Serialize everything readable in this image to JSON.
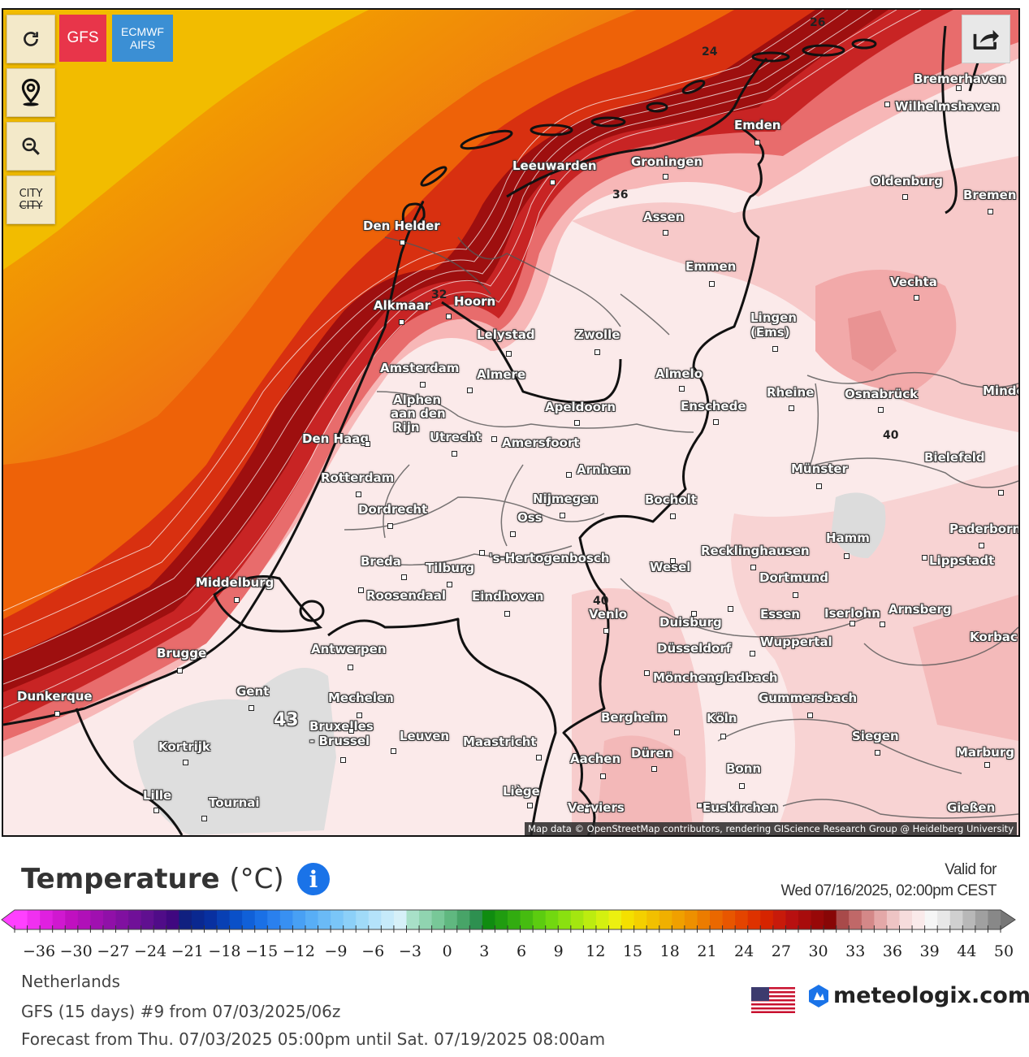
{
  "controls": {
    "refresh_icon": "refresh-icon",
    "gfs_label": "GFS",
    "ecmwf_label_1": "ECMWF",
    "ecmwf_label_2": "AIFS",
    "location_icon": "map-pin-icon",
    "zoom_icon": "zoom-out-icon",
    "city_toggle_label_1": "CITY",
    "city_toggle_label_2": "CITY",
    "share_icon": "share-icon",
    "colors": {
      "gfs": "#e8354a",
      "ecmwf": "#3b8fd4"
    }
  },
  "map": {
    "cities": [
      {
        "name": "Bremerhaven"
      },
      {
        "name": "Wilhelmshaven"
      },
      {
        "name": "Emden"
      },
      {
        "name": "Groningen"
      },
      {
        "name": "Leeuwarden"
      },
      {
        "name": "Oldenburg"
      },
      {
        "name": "Bremen"
      },
      {
        "name": "Den Helder"
      },
      {
        "name": "Assen"
      },
      {
        "name": "Emmen"
      },
      {
        "name": "Vechta"
      },
      {
        "name": "Alkmaar"
      },
      {
        "name": "Hoorn"
      },
      {
        "name": "Lingen"
      },
      {
        "name": "(Ems)"
      },
      {
        "name": "Lelystad"
      },
      {
        "name": "Zwolle"
      },
      {
        "name": "Amsterdam"
      },
      {
        "name": "Almere"
      },
      {
        "name": "Almelo"
      },
      {
        "name": "Rheine"
      },
      {
        "name": "Osnabrück"
      },
      {
        "name": "Minde"
      },
      {
        "name": "Alphen"
      },
      {
        "name": "aan den"
      },
      {
        "name": "Rijn"
      },
      {
        "name": "Apeldoorn"
      },
      {
        "name": "Enschede"
      },
      {
        "name": "Utrecht"
      },
      {
        "name": "Amersfoort"
      },
      {
        "name": "Den Haag"
      },
      {
        "name": "Bielefeld"
      },
      {
        "name": "Rotterdam"
      },
      {
        "name": "Arnhem"
      },
      {
        "name": "Münster"
      },
      {
        "name": "Nijmegen"
      },
      {
        "name": "Bocholt"
      },
      {
        "name": "Dordrecht"
      },
      {
        "name": "Oss"
      },
      {
        "name": "Hamm"
      },
      {
        "name": "Paderborn"
      },
      {
        "name": "Breda"
      },
      {
        "name": "'s-Hertogenbosch"
      },
      {
        "name": "Recklinghausen"
      },
      {
        "name": "Lippstadt"
      },
      {
        "name": "Tilburg"
      },
      {
        "name": "Wesel"
      },
      {
        "name": "Middelburg"
      },
      {
        "name": "Dortmund"
      },
      {
        "name": "Roosendaal"
      },
      {
        "name": "Eindhoven"
      },
      {
        "name": "Venlo"
      },
      {
        "name": "Essen"
      },
      {
        "name": "Iserlohn"
      },
      {
        "name": "Arnsberg"
      },
      {
        "name": "Duisburg"
      },
      {
        "name": "Korbac"
      },
      {
        "name": "Brugge"
      },
      {
        "name": "Antwerpen"
      },
      {
        "name": "Düsseldorf"
      },
      {
        "name": "Wuppertal"
      },
      {
        "name": "Mönchengladbach"
      },
      {
        "name": "Dunkerque"
      },
      {
        "name": "Gent"
      },
      {
        "name": "Mechelen"
      },
      {
        "name": "Gummersbach"
      },
      {
        "name": "Bruxelles"
      },
      {
        "name": "- Brussel"
      },
      {
        "name": "Bergheim"
      },
      {
        "name": "Köln"
      },
      {
        "name": "Leuven"
      },
      {
        "name": "Maastricht"
      },
      {
        "name": "Siegen"
      },
      {
        "name": "Kortrijk"
      },
      {
        "name": "Aachen"
      },
      {
        "name": "Düren"
      },
      {
        "name": "Marburg"
      },
      {
        "name": "Bonn"
      },
      {
        "name": "Lille"
      },
      {
        "name": "Tournai"
      },
      {
        "name": "Liège"
      },
      {
        "name": "Verviers"
      },
      {
        "name": "Euskirchen"
      },
      {
        "name": "Gießen"
      }
    ],
    "isotherm_labels": [
      "26",
      "24",
      "36",
      "32",
      "40",
      "40",
      "43"
    ],
    "attribution": "Map data © OpenStreetMap contributors, rendering GIScience Research Group @ Heidelberg University"
  },
  "legend": {
    "title": "Temperature",
    "unit": "(°C)",
    "info_icon": "info-icon",
    "valid_label": "Valid for",
    "valid_time": "Wed 07/16/2025, 02:00pm CEST",
    "ticks": [
      "-36",
      "-30",
      "-27",
      "-24",
      "-21",
      "-18",
      "-15",
      "-12",
      "-9",
      "-6",
      "-3",
      "0",
      "3",
      "6",
      "9",
      "12",
      "15",
      "18",
      "21",
      "24",
      "27",
      "30",
      "33",
      "36",
      "39",
      "44",
      "50"
    ]
  },
  "meta": {
    "region": "Netherlands",
    "run": "GFS  (15 days)  #9 from 07/03/2025/06z",
    "range": "Forecast from Thu. 07/03/2025 05:00pm until Sat. 07/19/2025 08:00am"
  },
  "brand": {
    "name": "meteologix.com",
    "flag_icon": "us-flag-icon",
    "logo_icon": "meteologix-logo-icon"
  }
}
